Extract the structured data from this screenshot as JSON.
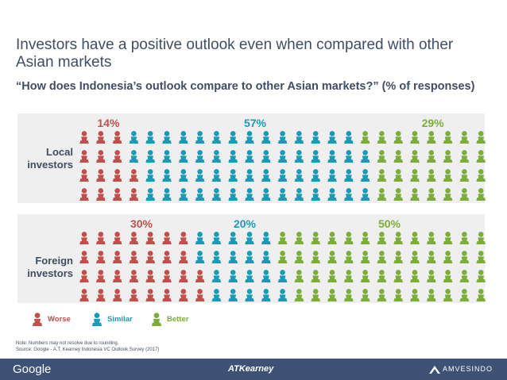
{
  "title": "Investors have a positive outlook even when compared with other Asian markets",
  "subtitle": "“How does Indonesia’s outlook compare to other Asian markets?” (% of responses)",
  "colors": {
    "worse": "#c0504d",
    "similar": "#1a9ab5",
    "better": "#7cac3a",
    "panel": "#efefef",
    "text": "#3f4e63"
  },
  "chart_data": {
    "type": "pictogram",
    "unit": "% of responses",
    "icons_per_row_group": 100,
    "categories": [
      "Worse",
      "Similar",
      "Better"
    ],
    "groups": [
      {
        "name": "Local investors",
        "label_line1": "Local",
        "label_line2": "investors",
        "values": [
          14,
          57,
          29
        ],
        "labels": [
          "14%",
          "57%",
          "29%"
        ]
      },
      {
        "name": "Foreign investors",
        "label_line1": "Foreign",
        "label_line2": "investors",
        "values": [
          30,
          20,
          50
        ],
        "labels": [
          "30%",
          "20%",
          "50%"
        ]
      }
    ]
  },
  "legend": {
    "worse": "Worse",
    "similar": "Similar",
    "better": "Better"
  },
  "note": "Note: Numbers may not resolve due to rounding.",
  "source": "Source: Google - A.T. Kearney Indonesia VC Outlook Survey (2017)",
  "footer": {
    "google": "Google",
    "atkearney": "ATKearney",
    "amvesindo": "AMVESINDO"
  }
}
